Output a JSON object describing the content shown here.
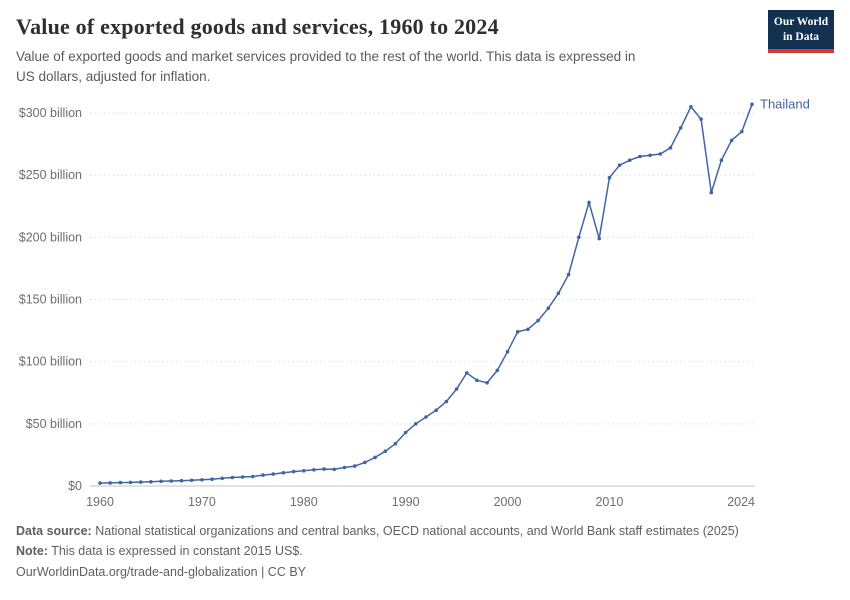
{
  "header": {
    "title": "Value of exported goods and services, 1960 to 2024",
    "subtitle": "Value of exported goods and market services provided to the rest of the world. This data is expressed in US dollars, adjusted for inflation.",
    "logo": {
      "line1": "Our World",
      "line2": "in Data",
      "bg_color": "#12304f",
      "accent_color": "#cf3b3b"
    }
  },
  "chart_data": {
    "type": "line",
    "title": "Value of exported goods and services, 1960 to 2024",
    "entity": "Thailand",
    "unit": "constant 2015 US$ (billions)",
    "line_color": "#4165a3",
    "grid": true,
    "legend_position": "end-of-line-label",
    "xlim": [
      1960,
      2024
    ],
    "ylim": [
      0,
      300
    ],
    "x_ticks": [
      1960,
      1970,
      1980,
      1990,
      2000,
      2010,
      2024
    ],
    "y_ticks": [
      {
        "value": 0,
        "label": "$0"
      },
      {
        "value": 50,
        "label": "$50 billion"
      },
      {
        "value": 100,
        "label": "$100 billion"
      },
      {
        "value": 150,
        "label": "$150 billion"
      },
      {
        "value": 200,
        "label": "$200 billion"
      },
      {
        "value": 250,
        "label": "$250 billion"
      },
      {
        "value": 300,
        "label": "$300 billion"
      }
    ],
    "years": [
      1960,
      1961,
      1962,
      1963,
      1964,
      1965,
      1966,
      1967,
      1968,
      1969,
      1970,
      1971,
      1972,
      1973,
      1974,
      1975,
      1976,
      1977,
      1978,
      1979,
      1980,
      1981,
      1982,
      1983,
      1984,
      1985,
      1986,
      1987,
      1988,
      1989,
      1990,
      1991,
      1992,
      1993,
      1994,
      1995,
      1996,
      1997,
      1998,
      1999,
      2000,
      2001,
      2002,
      2003,
      2004,
      2005,
      2006,
      2007,
      2008,
      2009,
      2010,
      2011,
      2012,
      2013,
      2014,
      2015,
      2016,
      2017,
      2018,
      2019,
      2020,
      2021,
      2022,
      2023,
      2024
    ],
    "values_billion_usd": [
      2.3,
      2.5,
      2.7,
      2.9,
      3.1,
      3.4,
      3.8,
      4.0,
      4.3,
      4.6,
      5.0,
      5.5,
      6.2,
      6.8,
      7.2,
      7.6,
      8.8,
      9.6,
      10.6,
      11.6,
      12.2,
      13.0,
      13.6,
      13.4,
      14.9,
      16.0,
      19.0,
      23.0,
      28.0,
      34.0,
      43.0,
      50.0,
      55.5,
      61.0,
      68.0,
      78.0,
      91.0,
      85.0,
      83.0,
      93.0,
      108,
      124,
      126,
      133,
      143,
      155,
      170,
      200,
      228,
      199,
      248,
      258,
      262,
      265,
      266,
      267,
      272,
      288,
      305,
      295,
      236,
      262,
      278,
      285,
      307
    ]
  },
  "footer": {
    "source_label": "Data source:",
    "source_text": "National statistical organizations and central banks, OECD national accounts, and World Bank staff estimates (2025)",
    "note_label": "Note:",
    "note_text": "This data is expressed in constant 2015 US$.",
    "link": "OurWorldinData.org/trade-and-globalization",
    "divider": "|",
    "license": "CC BY"
  }
}
